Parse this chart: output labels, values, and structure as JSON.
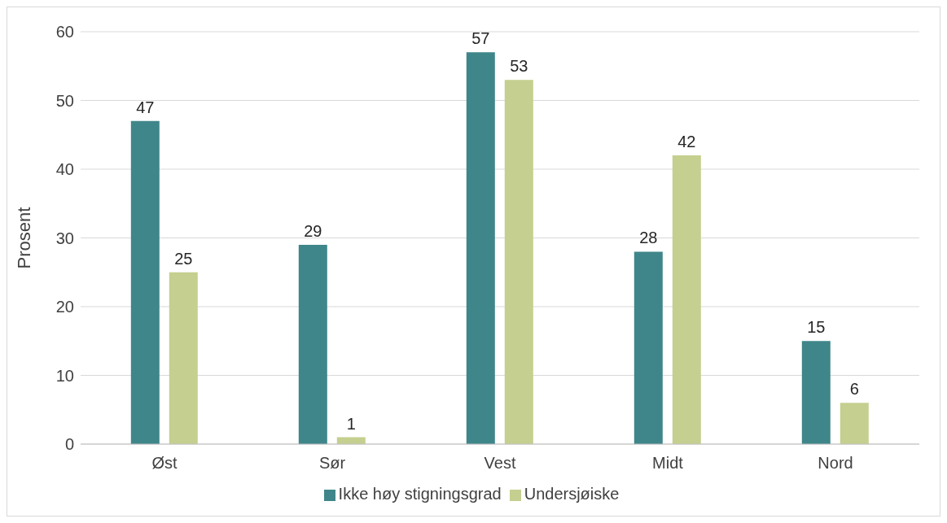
{
  "chart_data": {
    "type": "bar",
    "ylabel": "Prosent",
    "categories": [
      "Øst",
      "Sør",
      "Vest",
      "Midt",
      "Nord"
    ],
    "series": [
      {
        "name": "Ikke høy stigningsgrad",
        "color": "#3f868a",
        "values": [
          47,
          29,
          57,
          28,
          15
        ]
      },
      {
        "name": "Undersjøiske",
        "color": "#c5cf8f",
        "values": [
          25,
          1,
          53,
          42,
          6
        ]
      }
    ],
    "ylim": [
      0,
      60
    ],
    "yticks": [
      0,
      10,
      20,
      30,
      40,
      50,
      60
    ],
    "grid": "y",
    "legend": "bottom",
    "data_labels": true
  }
}
